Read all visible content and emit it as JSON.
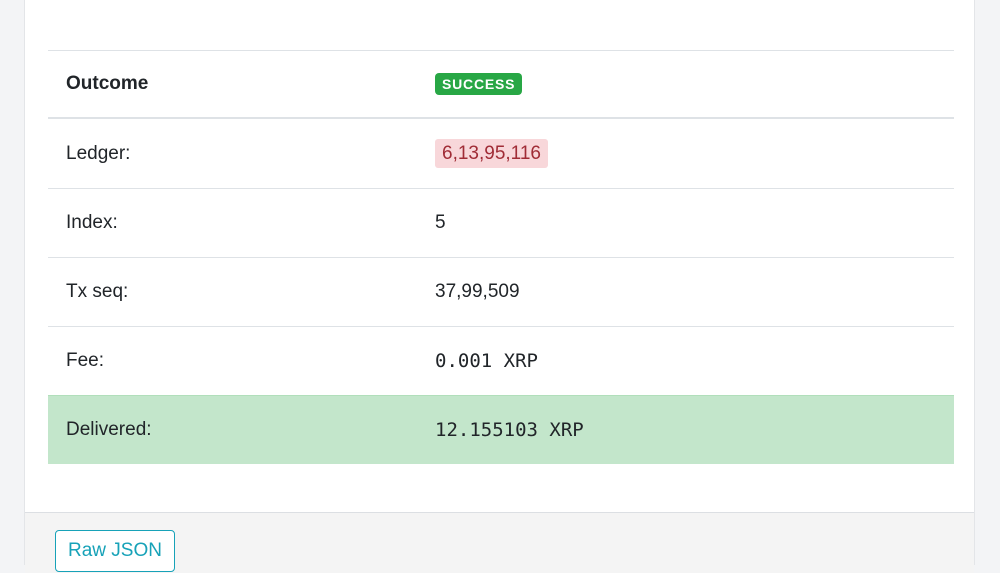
{
  "rows": [
    {
      "label": "Outcome",
      "value": "SUCCESS"
    },
    {
      "label": "Ledger:",
      "value": "6,13,95,116"
    },
    {
      "label": "Index:",
      "value": "5"
    },
    {
      "label": "Tx seq:",
      "value": "37,99,509"
    },
    {
      "label": "Fee:",
      "value": "0.001 XRP"
    },
    {
      "label": "Delivered:",
      "value": "12.155103 XRP"
    }
  ],
  "footer": {
    "raw_json_label": "Raw JSON"
  },
  "colors": {
    "success": "#28a745",
    "ledger_bg": "#f8d7da",
    "delivered_bg": "#c3e6cb",
    "button": "#17a2b8"
  }
}
